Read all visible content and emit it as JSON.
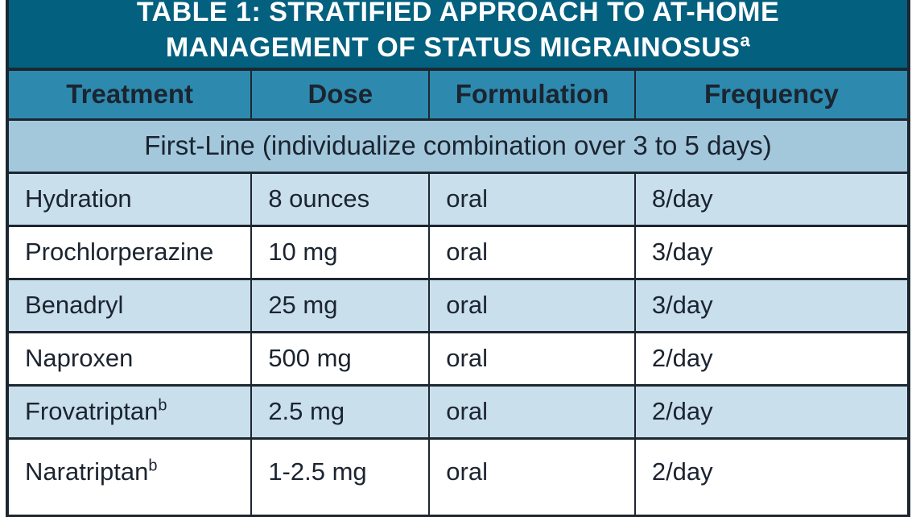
{
  "table": {
    "title_line1": "TABLE 1: STRATIFIED APPROACH TO AT-HOME",
    "title_line2": "MANAGEMENT OF STATUS MIGRAINOSUS",
    "title_superscript": "a",
    "columns": [
      "Treatment",
      "Dose",
      "Formulation",
      "Frequency"
    ],
    "section_header": "First-Line (individualize combination over 3 to 5 days)",
    "rows": [
      {
        "treatment": "Hydration",
        "treatment_sup": "",
        "dose": "8 ounces",
        "formulation": "oral",
        "frequency": "8/day"
      },
      {
        "treatment": "Prochlorperazine",
        "treatment_sup": "",
        "dose": "10 mg",
        "formulation": "oral",
        "frequency": "3/day"
      },
      {
        "treatment": "Benadryl",
        "treatment_sup": "",
        "dose": "25 mg",
        "formulation": "oral",
        "frequency": "3/day"
      },
      {
        "treatment": "Naproxen",
        "treatment_sup": "",
        "dose": "500 mg",
        "formulation": "oral",
        "frequency": "2/day"
      },
      {
        "treatment": "Frovatriptan",
        "treatment_sup": "b",
        "dose": "2.5 mg",
        "formulation": "oral",
        "frequency": "2/day"
      },
      {
        "treatment": "Naratriptan",
        "treatment_sup": "b",
        "dose": "1-2.5 mg",
        "formulation": "oral",
        "frequency": "2/day"
      }
    ],
    "colors": {
      "title_background": "#04607f",
      "title_text": "#ffffff",
      "header_background": "#2d8aae",
      "section_background": "#a3c8dc",
      "row_alternate_background": "#c9dfeb",
      "row_background": "#ffffff",
      "border": "#1d2731",
      "body_text": "#1b2430"
    }
  }
}
